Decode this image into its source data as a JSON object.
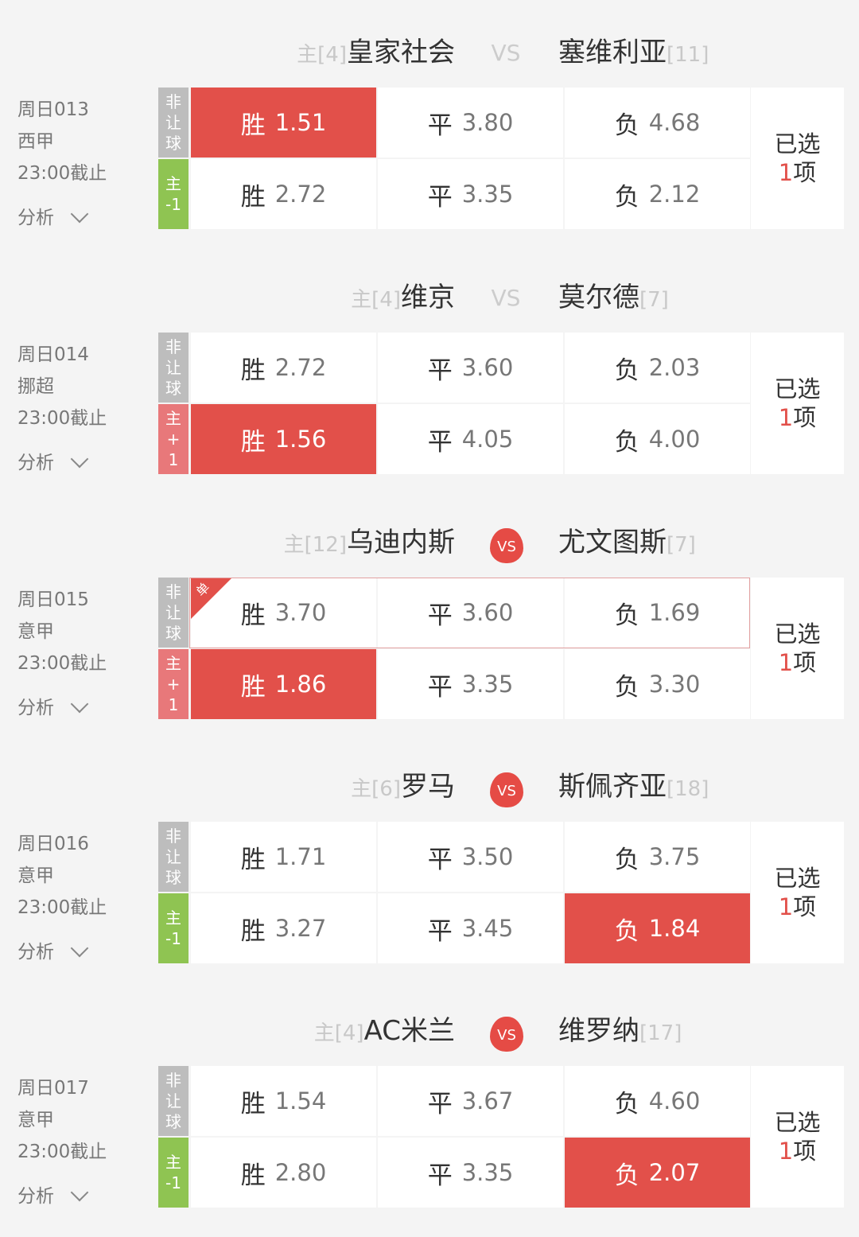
{
  "colors": {
    "selected": "#e2504a",
    "label_nonhandicap": "#bdbdbd",
    "label_minus": "#8fc452",
    "label_plus": "#e8787a"
  },
  "picked_label": "已选",
  "picked_suffix": "项",
  "analysis_label": "分析",
  "matches": [
    {
      "home_prefix": "主[4]",
      "home": "皇家社会",
      "vs": "VS",
      "hot": false,
      "away": "塞维利亚",
      "away_rank": "[11]",
      "code": "周日013",
      "league": "西甲",
      "deadline": "23:00截止",
      "picked_count": "1",
      "rows": [
        {
          "label": "非让球",
          "sign": "none",
          "cells": [
            {
              "k": "胜",
              "v": "1.51",
              "sel": true
            },
            {
              "k": "平",
              "v": "3.80",
              "sel": false
            },
            {
              "k": "负",
              "v": "4.68",
              "sel": false
            }
          ]
        },
        {
          "label": "主-1",
          "sign": "minus",
          "cells": [
            {
              "k": "胜",
              "v": "2.72",
              "sel": false
            },
            {
              "k": "平",
              "v": "3.35",
              "sel": false
            },
            {
              "k": "负",
              "v": "2.12",
              "sel": false
            }
          ]
        }
      ]
    },
    {
      "home_prefix": "主[4]",
      "home": "维京",
      "vs": "VS",
      "hot": false,
      "away": "莫尔德",
      "away_rank": "[7]",
      "code": "周日014",
      "league": "挪超",
      "deadline": "23:00截止",
      "picked_count": "1",
      "rows": [
        {
          "label": "非让球",
          "sign": "none",
          "cells": [
            {
              "k": "胜",
              "v": "2.72",
              "sel": false
            },
            {
              "k": "平",
              "v": "3.60",
              "sel": false
            },
            {
              "k": "负",
              "v": "2.03",
              "sel": false
            }
          ]
        },
        {
          "label": "主+1",
          "sign": "plus",
          "cells": [
            {
              "k": "胜",
              "v": "1.56",
              "sel": true
            },
            {
              "k": "平",
              "v": "4.05",
              "sel": false
            },
            {
              "k": "负",
              "v": "4.00",
              "sel": false
            }
          ]
        }
      ]
    },
    {
      "home_prefix": "主[12]",
      "home": "乌迪内斯",
      "vs": "VS",
      "hot": true,
      "away": "尤文图斯",
      "away_rank": "[7]",
      "code": "周日015",
      "league": "意甲",
      "deadline": "23:00截止",
      "picked_count": "1",
      "single_badge": "单",
      "rows": [
        {
          "label": "非让球",
          "sign": "none",
          "cells": [
            {
              "k": "胜",
              "v": "3.70",
              "sel": false
            },
            {
              "k": "平",
              "v": "3.60",
              "sel": false
            },
            {
              "k": "负",
              "v": "1.69",
              "sel": false
            }
          ]
        },
        {
          "label": "主+1",
          "sign": "plus",
          "cells": [
            {
              "k": "胜",
              "v": "1.86",
              "sel": true
            },
            {
              "k": "平",
              "v": "3.35",
              "sel": false
            },
            {
              "k": "负",
              "v": "3.30",
              "sel": false
            }
          ]
        }
      ]
    },
    {
      "home_prefix": "主[6]",
      "home": "罗马",
      "vs": "VS",
      "hot": true,
      "away": "斯佩齐亚",
      "away_rank": "[18]",
      "code": "周日016",
      "league": "意甲",
      "deadline": "23:00截止",
      "picked_count": "1",
      "rows": [
        {
          "label": "非让球",
          "sign": "none",
          "cells": [
            {
              "k": "胜",
              "v": "1.71",
              "sel": false
            },
            {
              "k": "平",
              "v": "3.50",
              "sel": false
            },
            {
              "k": "负",
              "v": "3.75",
              "sel": false
            }
          ]
        },
        {
          "label": "主-1",
          "sign": "minus",
          "cells": [
            {
              "k": "胜",
              "v": "3.27",
              "sel": false
            },
            {
              "k": "平",
              "v": "3.45",
              "sel": false
            },
            {
              "k": "负",
              "v": "1.84",
              "sel": true
            }
          ]
        }
      ]
    },
    {
      "home_prefix": "主[4]",
      "home": "AC米兰",
      "vs": "VS",
      "hot": true,
      "away": "维罗纳",
      "away_rank": "[17]",
      "code": "周日017",
      "league": "意甲",
      "deadline": "23:00截止",
      "picked_count": "1",
      "rows": [
        {
          "label": "非让球",
          "sign": "none",
          "cells": [
            {
              "k": "胜",
              "v": "1.54",
              "sel": false
            },
            {
              "k": "平",
              "v": "3.67",
              "sel": false
            },
            {
              "k": "负",
              "v": "4.60",
              "sel": false
            }
          ]
        },
        {
          "label": "主-1",
          "sign": "minus",
          "cells": [
            {
              "k": "胜",
              "v": "2.80",
              "sel": false
            },
            {
              "k": "平",
              "v": "3.35",
              "sel": false
            },
            {
              "k": "负",
              "v": "2.07",
              "sel": true
            }
          ]
        }
      ]
    }
  ]
}
